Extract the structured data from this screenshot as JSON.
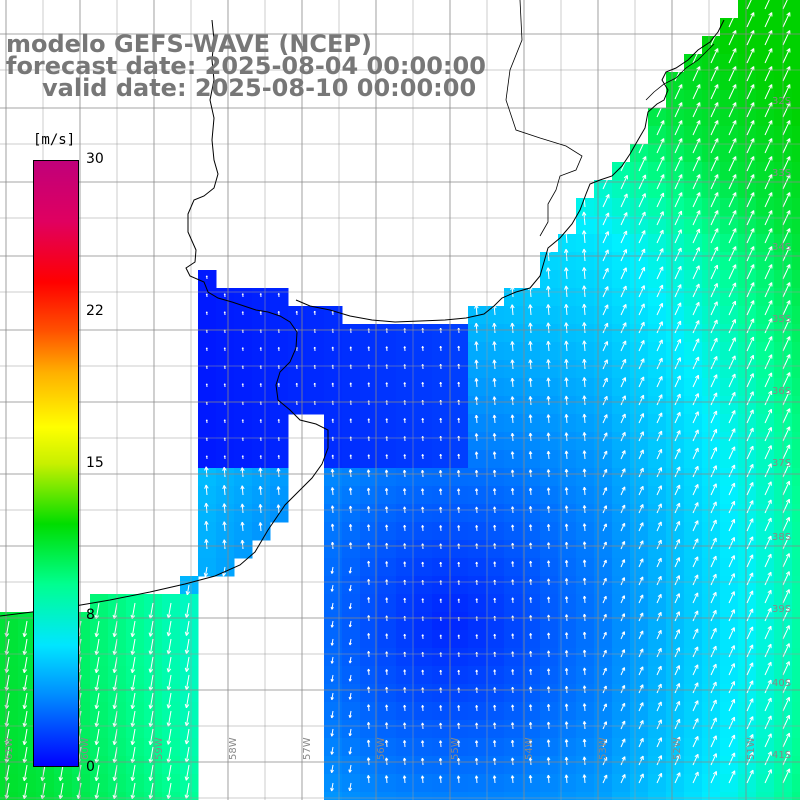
{
  "title": {
    "line1": "modelo GEFS-WAVE (NCEP)",
    "line2": "forecast date: 2025-08-04 00:00:00",
    "line3": "valid date: 2025-08-10 00:00:00"
  },
  "colorbar": {
    "unit": "[m/s]",
    "ticks": [
      {
        "label": "30",
        "value": 30
      },
      {
        "label": "22",
        "value": 22
      },
      {
        "label": "15",
        "value": 15
      },
      {
        "label": "8",
        "value": 8
      },
      {
        "label": "0",
        "value": 0
      }
    ],
    "min": 0,
    "max": 30,
    "colors": [
      "#0000ff",
      "#00e6ff",
      "#00dd00",
      "#ffff00",
      "#ff0000",
      "#c0007a"
    ]
  },
  "grid": {
    "lat_labels": [
      "32S",
      "33S",
      "34S",
      "35S",
      "36S",
      "37S",
      "38S",
      "39S",
      "40S",
      "41S"
    ],
    "lon_labels": [
      "61W",
      "60W",
      "59W",
      "58W",
      "57W",
      "56W",
      "55W",
      "54W",
      "53W",
      "52W",
      "51W"
    ]
  },
  "colors": {
    "land": "#ffffff",
    "coastline": "#000000",
    "grid": "#888888",
    "arrow": "#ffffff"
  }
}
